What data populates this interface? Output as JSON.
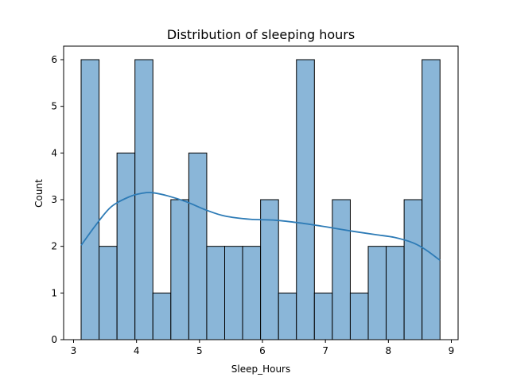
{
  "chart_data": {
    "type": "bar",
    "title": "Distribution of sleeping hours",
    "xlabel": "Sleep_Hours",
    "ylabel": "Count",
    "xlim": [
      3.0,
      9.0
    ],
    "ylim": [
      0,
      6
    ],
    "xticks": [
      3,
      4,
      5,
      6,
      7,
      8,
      9
    ],
    "yticks": [
      0,
      1,
      2,
      3,
      4,
      5,
      6
    ],
    "bin_start": 3.12,
    "bin_end": 8.82,
    "bins": [
      {
        "x0": 3.12,
        "x1": 3.405,
        "count": 6
      },
      {
        "x0": 3.405,
        "x1": 3.69,
        "count": 2
      },
      {
        "x0": 3.69,
        "x1": 3.975,
        "count": 4
      },
      {
        "x0": 3.975,
        "x1": 4.26,
        "count": 6
      },
      {
        "x0": 4.26,
        "x1": 4.545,
        "count": 1
      },
      {
        "x0": 4.545,
        "x1": 4.83,
        "count": 3
      },
      {
        "x0": 4.83,
        "x1": 5.115,
        "count": 4
      },
      {
        "x0": 5.115,
        "x1": 5.4,
        "count": 2
      },
      {
        "x0": 5.4,
        "x1": 5.685,
        "count": 2
      },
      {
        "x0": 5.685,
        "x1": 5.97,
        "count": 2
      },
      {
        "x0": 5.97,
        "x1": 6.255,
        "count": 3
      },
      {
        "x0": 6.255,
        "x1": 6.54,
        "count": 1
      },
      {
        "x0": 6.54,
        "x1": 6.825,
        "count": 6
      },
      {
        "x0": 6.825,
        "x1": 7.11,
        "count": 1
      },
      {
        "x0": 7.11,
        "x1": 7.395,
        "count": 3
      },
      {
        "x0": 7.395,
        "x1": 7.68,
        "count": 1
      },
      {
        "x0": 7.68,
        "x1": 7.965,
        "count": 2
      },
      {
        "x0": 7.965,
        "x1": 8.25,
        "count": 2
      },
      {
        "x0": 8.25,
        "x1": 8.535,
        "count": 3
      },
      {
        "x0": 8.535,
        "x1": 8.82,
        "count": 6
      }
    ],
    "kde": {
      "x": [
        3.12,
        3.35,
        3.6,
        3.9,
        4.1,
        4.25,
        4.5,
        4.8,
        5.1,
        5.4,
        5.8,
        6.2,
        6.6,
        7.0,
        7.4,
        7.8,
        8.1,
        8.4,
        8.6,
        8.82
      ],
      "y": [
        2.02,
        2.45,
        2.85,
        3.07,
        3.14,
        3.15,
        3.08,
        2.95,
        2.78,
        2.65,
        2.58,
        2.56,
        2.5,
        2.42,
        2.33,
        2.25,
        2.19,
        2.07,
        1.92,
        1.7
      ]
    },
    "grid": false,
    "colors": {
      "bar_fill": "#8ab6d8",
      "bar_edge": "#000000",
      "kde_line": "#2d7bb6",
      "axis": "#000000"
    }
  }
}
